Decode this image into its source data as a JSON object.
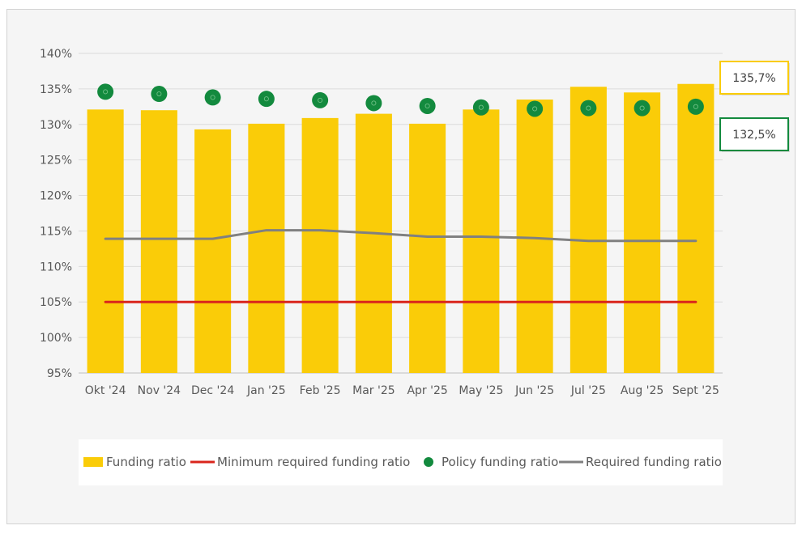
{
  "chart_data": {
    "type": "bar",
    "categories": [
      "Okt '24",
      "Nov '24",
      "Dec '24",
      "Jan '25",
      "Feb '25",
      "Mar '25",
      "Apr '25",
      "May '25",
      "Jun '25",
      "Jul '25",
      "Aug '25",
      "Sept '25"
    ],
    "series": [
      {
        "name": "Funding ratio",
        "kind": "bar",
        "color": "#FACC08",
        "values": [
          132.1,
          132.0,
          129.3,
          130.1,
          130.9,
          131.5,
          130.1,
          132.1,
          133.5,
          135.3,
          134.5,
          135.7
        ]
      },
      {
        "name": "Minimum required funding ratio",
        "kind": "line",
        "color": "#D9251C",
        "values": [
          105.0,
          105.0,
          105.0,
          105.0,
          105.0,
          105.0,
          105.0,
          105.0,
          105.0,
          105.0,
          105.0,
          105.0
        ]
      },
      {
        "name": "Policy funding ratio",
        "kind": "scatter",
        "color": "#138A3E",
        "values": [
          134.6,
          134.3,
          133.8,
          133.6,
          133.4,
          133.0,
          132.6,
          132.4,
          132.2,
          132.3,
          132.3,
          132.5
        ]
      },
      {
        "name": "Required funding ratio",
        "kind": "line",
        "color": "#808080",
        "values": [
          113.9,
          113.9,
          113.9,
          115.1,
          115.1,
          114.7,
          114.2,
          114.2,
          114.0,
          113.6,
          113.6,
          113.6
        ]
      }
    ],
    "ylim": [
      95,
      140
    ],
    "yticks": [
      "95%",
      "100%",
      "105%",
      "110%",
      "115%",
      "120%",
      "125%",
      "130%",
      "135%",
      "140%"
    ],
    "grid": true,
    "legend_position": "bottom",
    "annotations": [
      {
        "text": "135,7%",
        "series": "Funding ratio",
        "border_color": "#FACC08"
      },
      {
        "text": "132,5%",
        "series": "Policy funding ratio",
        "border_color": "#138A3E"
      }
    ]
  }
}
